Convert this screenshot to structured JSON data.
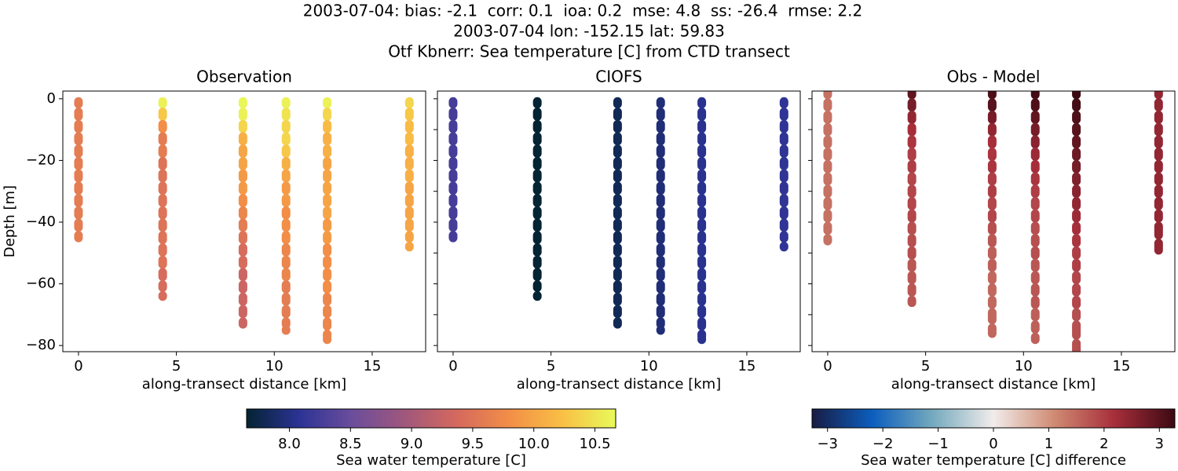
{
  "suptitle": [
    "2003-07-04: bias: -2.1  corr: 0.1  ioa: 0.2  mse: 4.8  ss: -26.4  rmse: 2.2",
    "2003-07-04 lon: -152.15 lat: 59.83",
    "Otf Kbnerr: Sea temperature [C] from CTD transect"
  ],
  "colorbars": [
    {
      "label": "Sea water temperature [C]",
      "lim": [
        7.65,
        10.67
      ],
      "colors": [
        "#042333",
        "#2c3395",
        "#6b4d9c",
        "#a0577c",
        "#d5695d",
        "#f28f47",
        "#f9c045",
        "#e8fa5b"
      ],
      "ticks": [
        {
          "value": 8,
          "label": "8.0"
        },
        8.5,
        {
          "value": 9,
          "label": "9.0"
        },
        9.5,
        {
          "value": 10,
          "label": "10.0"
        },
        10.5
      ]
    },
    {
      "label": "Sea water temperature [C] difference",
      "lim": [
        -3.28,
        3.28
      ],
      "colors": [
        "#181c43",
        "#0c5ebe",
        "#75aabe",
        "#f1eceb",
        "#d08b73",
        "#a72e3b",
        "#3c0912"
      ],
      "ticks": [
        {
          "value": -3,
          "label": "−3"
        },
        {
          "value": -2,
          "label": "−2"
        },
        {
          "value": -1,
          "label": "−1"
        },
        0,
        1,
        2,
        3
      ]
    }
  ],
  "chart_data": [
    {
      "type": "scatter",
      "title": "Observation",
      "xlabel": "along-transect distance [km]",
      "ylabel": "Depth [m]",
      "colorbar": 0,
      "show_ytick_labels": true,
      "xlim": [
        -0.8,
        17.73
      ],
      "ylim": [
        -82,
        2.5
      ],
      "xticks": [
        0,
        5,
        10,
        15
      ],
      "yticks": [
        0,
        {
          "value": -20,
          "label": "−20"
        },
        {
          "value": -40,
          "label": "−40"
        },
        {
          "value": -60,
          "label": "−60"
        },
        {
          "value": -80,
          "label": "−80"
        }
      ],
      "casts": [
        {
          "x": 0,
          "y": [
            -1,
            -5,
            -9,
            -13,
            -17,
            -21,
            -25,
            -29,
            -33,
            -37,
            -41,
            -45
          ],
          "values": [
            9.6,
            9.6,
            9.6,
            9.6,
            9.6,
            9.6,
            9.6,
            9.6,
            9.6,
            9.6,
            9.6,
            9.6
          ]
        },
        {
          "x": 4.3,
          "y": [
            -1,
            -5,
            -9,
            -13,
            -17,
            -21,
            -25,
            -29,
            -33,
            -37,
            -41,
            -45,
            -49,
            -53,
            -57,
            -61,
            -64
          ],
          "values": [
            10.6,
            10.3,
            9.8,
            9.6,
            9.6,
            9.5,
            9.5,
            9.5,
            9.5,
            9.5,
            9.5,
            9.5,
            9.5,
            9.5,
            9.4,
            9.4,
            9.4
          ]
        },
        {
          "x": 8.4,
          "y": [
            -1,
            -5,
            -9,
            -13,
            -17,
            -21,
            -25,
            -29,
            -33,
            -37,
            -41,
            -45,
            -49,
            -53,
            -57,
            -61,
            -65,
            -69,
            -73
          ],
          "values": [
            10.65,
            10.6,
            10.4,
            10.1,
            10.0,
            10.0,
            9.9,
            9.9,
            9.8,
            9.7,
            9.6,
            9.5,
            9.4,
            9.4,
            9.3,
            9.3,
            9.3,
            9.3,
            9.3
          ]
        },
        {
          "x": 10.6,
          "y": [
            -1,
            -5,
            -9,
            -13,
            -17,
            -21,
            -25,
            -29,
            -33,
            -37,
            -41,
            -45,
            -49,
            -53,
            -57,
            -61,
            -65,
            -69,
            -73,
            -75
          ],
          "values": [
            10.6,
            10.5,
            10.4,
            10.4,
            10.3,
            10.1,
            10.0,
            9.9,
            9.9,
            9.8,
            9.8,
            9.8,
            9.7,
            9.7,
            9.7,
            9.6,
            9.6,
            9.6,
            9.6,
            9.6
          ]
        },
        {
          "x": 12.7,
          "y": [
            -1,
            -5,
            -9,
            -13,
            -17,
            -21,
            -25,
            -29,
            -33,
            -37,
            -41,
            -45,
            -49,
            -53,
            -57,
            -61,
            -65,
            -69,
            -73,
            -77,
            -78
          ],
          "values": [
            10.6,
            10.4,
            10.2,
            10.1,
            10.1,
            10.0,
            10.0,
            10.0,
            10.0,
            10.0,
            9.9,
            9.9,
            9.8,
            9.8,
            9.8,
            9.8,
            9.7,
            9.7,
            9.7,
            9.7,
            9.7
          ]
        },
        {
          "x": 16.9,
          "y": [
            -1,
            -5,
            -9,
            -13,
            -17,
            -21,
            -25,
            -29,
            -33,
            -37,
            -41,
            -45,
            -48
          ],
          "values": [
            10.4,
            10.3,
            10.2,
            10.2,
            10.1,
            10.1,
            10.1,
            10.0,
            10.0,
            10.0,
            10.0,
            10.0,
            10.0
          ]
        }
      ]
    },
    {
      "type": "scatter",
      "title": "CIOFS",
      "xlabel": "along-transect distance [km]",
      "colorbar": 0,
      "show_ytick_labels": false,
      "xlim": [
        -0.8,
        17.73
      ],
      "ylim": [
        -82,
        2.5
      ],
      "xticks": [
        0,
        5,
        10,
        15
      ],
      "yticks": [
        0,
        -10,
        -20,
        -30,
        -40,
        -50,
        -60,
        -70,
        -80
      ],
      "casts": [
        {
          "x": 0,
          "y": [
            -1,
            -5,
            -9,
            -13,
            -17,
            -21,
            -25,
            -29,
            -33,
            -37,
            -41,
            -45
          ],
          "values": [
            8.25,
            8.25,
            8.25,
            8.25,
            8.25,
            8.25,
            8.25,
            8.25,
            8.25,
            8.25,
            8.25,
            8.25
          ]
        },
        {
          "x": 4.3,
          "y": [
            -1,
            -5,
            -9,
            -13,
            -17,
            -21,
            -25,
            -29,
            -33,
            -37,
            -41,
            -45,
            -49,
            -53,
            -57,
            -61,
            -64
          ],
          "values": [
            7.65,
            7.65,
            7.65,
            7.65,
            7.65,
            7.65,
            7.65,
            7.65,
            7.65,
            7.65,
            7.65,
            7.65,
            7.65,
            7.65,
            7.65,
            7.65,
            7.65
          ]
        },
        {
          "x": 8.4,
          "y": [
            -1,
            -5,
            -9,
            -13,
            -17,
            -21,
            -25,
            -29,
            -33,
            -37,
            -41,
            -45,
            -49,
            -53,
            -57,
            -61,
            -65,
            -69,
            -73
          ],
          "values": [
            7.8,
            7.8,
            7.8,
            7.8,
            7.8,
            7.8,
            7.8,
            7.8,
            7.8,
            7.8,
            7.8,
            7.8,
            7.8,
            7.8,
            7.8,
            7.8,
            7.8,
            7.8,
            7.8
          ]
        },
        {
          "x": 10.6,
          "y": [
            -1,
            -5,
            -9,
            -13,
            -17,
            -21,
            -25,
            -29,
            -33,
            -37,
            -41,
            -45,
            -49,
            -53,
            -57,
            -61,
            -65,
            -69,
            -73,
            -75
          ],
          "values": [
            7.95,
            7.95,
            7.95,
            7.95,
            7.95,
            7.95,
            7.95,
            7.95,
            7.95,
            7.95,
            7.95,
            7.95,
            7.95,
            7.95,
            7.95,
            7.95,
            7.95,
            7.95,
            7.95,
            7.95
          ]
        },
        {
          "x": 12.7,
          "y": [
            -1,
            -5,
            -9,
            -13,
            -17,
            -21,
            -25,
            -29,
            -33,
            -37,
            -41,
            -45,
            -49,
            -53,
            -57,
            -61,
            -65,
            -69,
            -73,
            -77,
            -78
          ],
          "values": [
            8.05,
            8.05,
            8.05,
            8.05,
            8.05,
            8.05,
            8.05,
            8.05,
            8.05,
            8.05,
            8.05,
            8.05,
            8.05,
            8.05,
            8.05,
            8.05,
            8.05,
            8.05,
            8.05,
            8.05,
            8.05
          ]
        },
        {
          "x": 16.9,
          "y": [
            -1,
            -5,
            -9,
            -13,
            -17,
            -21,
            -25,
            -29,
            -33,
            -37,
            -41,
            -45,
            -48
          ],
          "values": [
            8.1,
            8.1,
            8.1,
            8.1,
            8.1,
            8.1,
            8.1,
            8.1,
            8.1,
            8.1,
            8.1,
            8.1,
            8.1
          ]
        }
      ]
    },
    {
      "type": "scatter",
      "title": "Obs - Model",
      "xlabel": "along-transect distance [km]",
      "colorbar": 1,
      "show_ytick_labels": false,
      "xlim": [
        -0.8,
        17.73
      ],
      "ylim": [
        -82,
        2.5
      ],
      "xticks": [
        0,
        5,
        10,
        15
      ],
      "yticks": [
        0,
        -10,
        -20,
        -30,
        -40,
        -50,
        -60,
        -70,
        -80
      ],
      "casts": [
        {
          "x": 0,
          "y": [
            2,
            -2,
            -6,
            -10,
            -14,
            -18,
            -22,
            -26,
            -30,
            -34,
            -38,
            -42,
            -46
          ],
          "values": [
            1.4,
            1.4,
            1.4,
            1.4,
            1.4,
            1.4,
            1.4,
            1.4,
            1.4,
            1.4,
            1.4,
            1.4,
            1.4
          ]
        },
        {
          "x": 4.3,
          "y": [
            2,
            -2,
            -6,
            -10,
            -14,
            -18,
            -22,
            -26,
            -30,
            -34,
            -38,
            -42,
            -46,
            -50,
            -54,
            -58,
            -62,
            -66
          ],
          "values": [
            2.9,
            2.7,
            2.4,
            2.2,
            2.1,
            2.0,
            2.0,
            1.9,
            1.9,
            1.9,
            1.9,
            1.8,
            1.8,
            1.8,
            1.7,
            1.7,
            1.7,
            1.7
          ]
        },
        {
          "x": 8.4,
          "y": [
            2,
            -2,
            -6,
            -10,
            -14,
            -18,
            -22,
            -26,
            -30,
            -34,
            -38,
            -42,
            -46,
            -50,
            -54,
            -58,
            -62,
            -66,
            -70,
            -76
          ],
          "values": [
            3.1,
            3.0,
            2.7,
            2.4,
            2.2,
            2.1,
            2.1,
            2.0,
            2.0,
            1.9,
            1.9,
            1.8,
            1.7,
            1.6,
            1.6,
            1.5,
            1.5,
            1.5,
            1.5,
            1.5
          ]
        },
        {
          "x": 10.6,
          "y": [
            2,
            -2,
            -6,
            -10,
            -14,
            -18,
            -22,
            -26,
            -30,
            -34,
            -38,
            -42,
            -46,
            -50,
            -54,
            -58,
            -62,
            -66,
            -70,
            -74,
            -78
          ],
          "values": [
            3.2,
            3.1,
            2.9,
            2.7,
            2.5,
            2.3,
            2.2,
            2.1,
            2.0,
            1.9,
            1.9,
            1.8,
            1.8,
            1.8,
            1.7,
            1.7,
            1.7,
            1.7,
            1.6,
            1.6,
            1.6
          ]
        },
        {
          "x": 12.7,
          "y": [
            2,
            -2,
            -6,
            -10,
            -14,
            -18,
            -22,
            -26,
            -30,
            -34,
            -38,
            -42,
            -46,
            -50,
            -54,
            -58,
            -62,
            -66,
            -70,
            -74,
            -82
          ],
          "values": [
            3.3,
            3.2,
            3.1,
            3.0,
            2.9,
            2.8,
            2.7,
            2.6,
            2.5,
            2.4,
            2.3,
            2.2,
            2.1,
            2.0,
            2.0,
            1.9,
            1.9,
            1.9,
            1.8,
            1.8,
            1.8
          ]
        },
        {
          "x": 16.9,
          "y": [
            2,
            -2,
            -6,
            -10,
            -14,
            -18,
            -22,
            -26,
            -30,
            -34,
            -38,
            -42,
            -49
          ],
          "values": [
            2.4,
            2.4,
            2.4,
            2.4,
            2.4,
            2.4,
            2.4,
            2.4,
            2.4,
            2.4,
            2.4,
            2.4,
            2.4
          ]
        }
      ]
    }
  ]
}
